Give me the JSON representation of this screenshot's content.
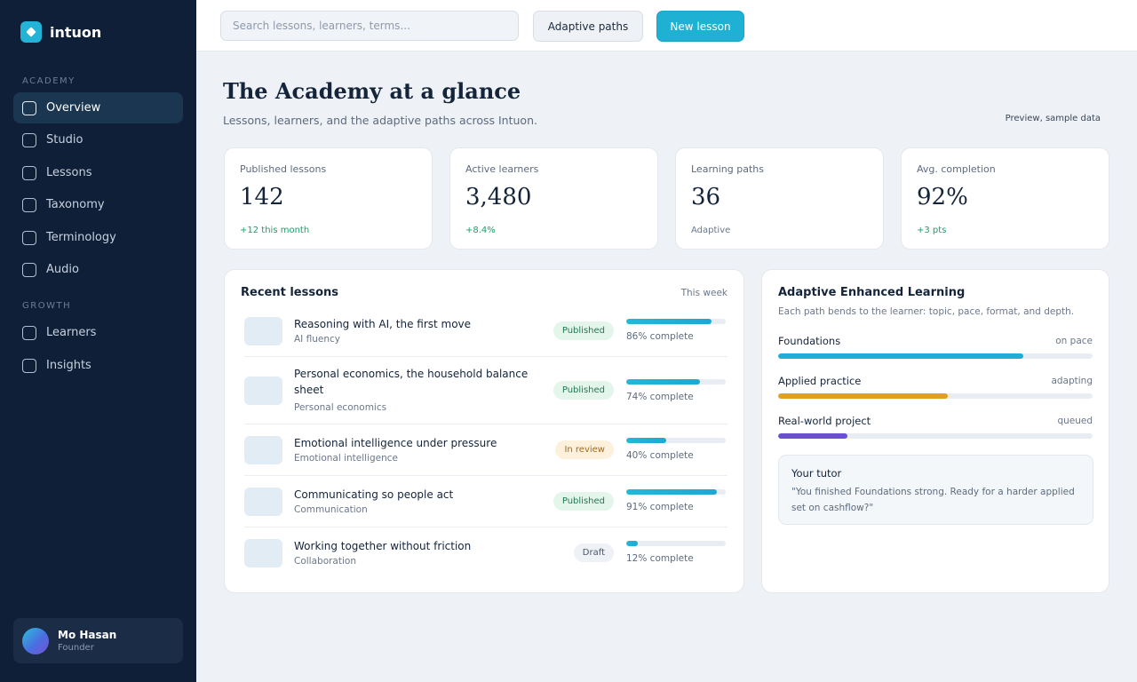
{
  "app": {
    "name": "intuon"
  },
  "sidebar": {
    "sections": [
      {
        "label": "ACADEMY",
        "items": [
          "Overview",
          "Studio",
          "Lessons",
          "Taxonomy",
          "Terminology",
          "Audio"
        ]
      },
      {
        "label": "GROWTH",
        "items": [
          "Learners",
          "Insights"
        ]
      }
    ],
    "active_item": "Overview"
  },
  "user": {
    "name": "Mo Hasan",
    "role": "Founder"
  },
  "topbar": {
    "search_placeholder": "Search lessons, learners, terms...",
    "adaptive_paths_label": "Adaptive paths",
    "new_lesson_label": "New lesson"
  },
  "header": {
    "title": "The Academy at a glance",
    "subtitle": "Lessons, learners, and the adaptive paths across Intuon.",
    "preview_tag": "Preview, sample data"
  },
  "stats": [
    {
      "label": "Published lessons",
      "value": "142",
      "delta": "+12 this month",
      "tone": "positive"
    },
    {
      "label": "Active learners",
      "value": "3,480",
      "delta": "+8.4%",
      "tone": "positive"
    },
    {
      "label": "Learning paths",
      "value": "36",
      "delta": "Adaptive",
      "tone": "neutral"
    },
    {
      "label": "Avg. completion",
      "value": "92%",
      "delta": "+3 pts",
      "tone": "positive"
    }
  ],
  "recent_lessons": {
    "title": "Recent lessons",
    "period": "This week",
    "items": [
      {
        "title": "Reasoning with AI, the first move",
        "category": "AI fluency",
        "status": "Published",
        "status_kind": "published",
        "progress": 0.86,
        "progress_label": "86% complete"
      },
      {
        "title": "Personal economics, the household balance sheet",
        "category": "Personal economics",
        "status": "Published",
        "status_kind": "published",
        "progress": 0.74,
        "progress_label": "74% complete"
      },
      {
        "title": "Emotional intelligence under pressure",
        "category": "Emotional intelligence",
        "status": "In review",
        "status_kind": "review",
        "progress": 0.4,
        "progress_label": "40% complete"
      },
      {
        "title": "Communicating so people act",
        "category": "Communication",
        "status": "Published",
        "status_kind": "published",
        "progress": 0.91,
        "progress_label": "91% complete"
      },
      {
        "title": "Working together without friction",
        "category": "Collaboration",
        "status": "Draft",
        "status_kind": "draft",
        "progress": 0.12,
        "progress_label": "12% complete"
      }
    ]
  },
  "adaptive": {
    "title": "Adaptive Enhanced Learning",
    "description": "Each path bends to the learner: topic, pace, format, and depth.",
    "paths": [
      {
        "name": "Foundations",
        "status": "on pace",
        "progress": 0.78,
        "color": "#1eaed6"
      },
      {
        "name": "Applied practice",
        "status": "adapting",
        "progress": 0.54,
        "color": "#e0a01e"
      },
      {
        "name": "Real-world project",
        "status": "queued",
        "progress": 0.22,
        "color": "#6a4fd0"
      }
    ],
    "tutor": {
      "title": "Your tutor",
      "quote": "\"You finished Foundations strong. Ready for a harder applied set on cashflow?\""
    }
  },
  "colors": {
    "sidebar_bg": "#0f1f38",
    "accent": "#1fb1d4",
    "positive": "#1e9c6a"
  }
}
